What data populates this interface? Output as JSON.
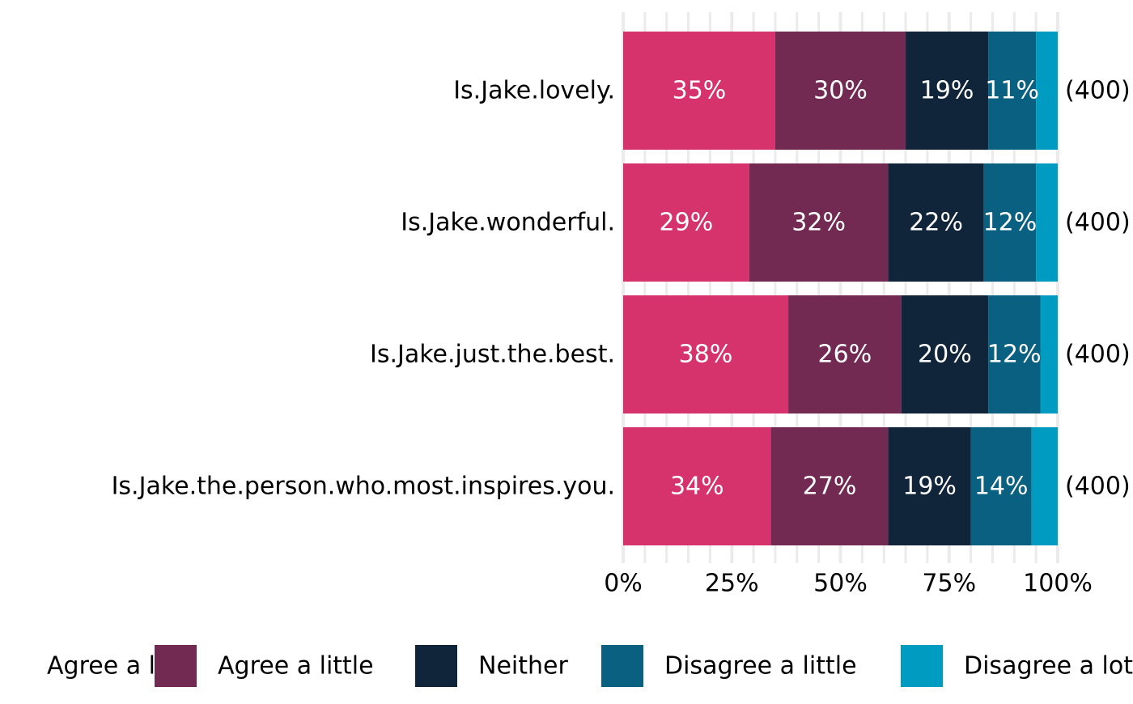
{
  "chart_data": {
    "type": "bar",
    "orientation": "horizontal",
    "stacked": true,
    "percent_scale": true,
    "categories": [
      "Is.Jake.lovely.",
      "Is.Jake.wonderful.",
      "Is.Jake.just.the.best.",
      "Is.Jake.the.person.who.most.inspires.you."
    ],
    "counts": [
      "(400)",
      "(400)",
      "(400)",
      "(400)"
    ],
    "series": [
      {
        "name": "Agree a lot",
        "color": "#d6336c",
        "values": [
          35,
          29,
          38,
          34
        ],
        "labels": [
          "35%",
          "29%",
          "38%",
          "34%"
        ]
      },
      {
        "name": "Agree a little",
        "color": "#722a53",
        "values": [
          30,
          32,
          26,
          27
        ],
        "labels": [
          "30%",
          "32%",
          "26%",
          "27%"
        ]
      },
      {
        "name": "Neither",
        "color": "#11253a",
        "values": [
          19,
          22,
          20,
          19
        ],
        "labels": [
          "19%",
          "22%",
          "20%",
          "19%"
        ]
      },
      {
        "name": "Disagree a little",
        "color": "#0a6080",
        "values": [
          11,
          12,
          12,
          14
        ],
        "labels": [
          "11%",
          "12%",
          "12%",
          "14%"
        ]
      },
      {
        "name": "Disagree a lot",
        "color": "#009bc0",
        "values": [
          5,
          5,
          4,
          6
        ],
        "labels": [
          "",
          "",
          "",
          ""
        ]
      }
    ],
    "xlim": [
      0,
      100
    ],
    "xticks": [
      0,
      25,
      50,
      75,
      100
    ],
    "xtick_labels": [
      "0%",
      "25%",
      "50%",
      "75%",
      "100%"
    ],
    "grid": true,
    "legend_position": "bottom",
    "title": "",
    "xlabel": "",
    "ylabel": ""
  }
}
